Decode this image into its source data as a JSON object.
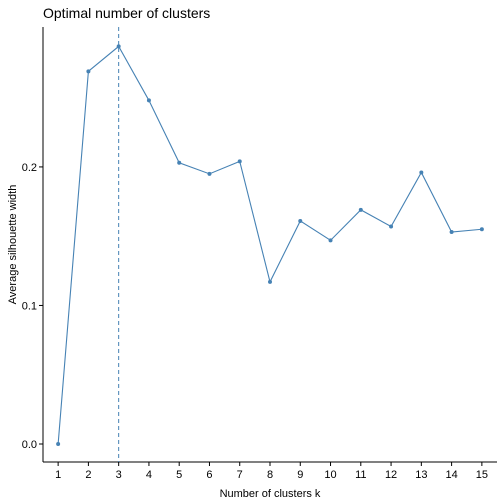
{
  "chart_data": {
    "type": "line",
    "title": "Optimal number of clusters",
    "xlabel": "Number of clusters k",
    "ylabel": "Average silhouette width",
    "x": [
      1,
      2,
      3,
      4,
      5,
      6,
      7,
      8,
      9,
      10,
      11,
      12,
      13,
      14,
      15
    ],
    "x_tick_labels": [
      "1",
      "2",
      "3",
      "4",
      "5",
      "6",
      "7",
      "8",
      "9",
      "10",
      "11",
      "12",
      "13",
      "14",
      "15"
    ],
    "y_ticks": [
      0.0,
      0.1,
      0.2
    ],
    "y_tick_labels": [
      "0.0",
      "0.1",
      "0.2"
    ],
    "xlim": [
      0.5,
      15.5
    ],
    "ylim": [
      -0.013,
      0.301
    ],
    "series": [
      {
        "values": [
          0.0,
          0.269,
          0.287,
          0.248,
          0.203,
          0.195,
          0.204,
          0.117,
          0.161,
          0.147,
          0.169,
          0.157,
          0.196,
          0.153,
          0.155
        ]
      }
    ],
    "reference_line": {
      "orientation": "vertical",
      "x": 3,
      "style": "dashed"
    },
    "grid": false,
    "legend": "none",
    "colors": {
      "series": "#4682B4",
      "reference": "#4682B4"
    }
  }
}
